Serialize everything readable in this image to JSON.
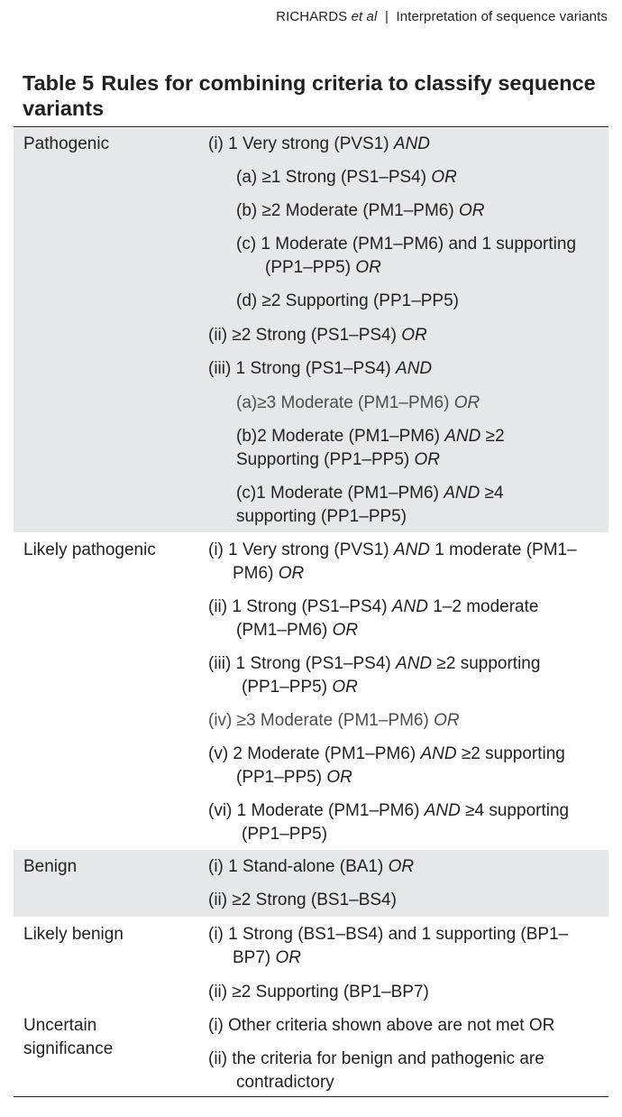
{
  "header": {
    "author": "RICHARDS",
    "etal": "et al",
    "separator": "|",
    "section": "Interpretation of sequence variants"
  },
  "table": {
    "label": "Table 5",
    "title_line1": "Rules for combining criteria to classify sequence",
    "title_line2": "variants",
    "rows": {
      "pathogenic": {
        "category": "Pathogenic",
        "r1": "(i) 1 Very strong (PVS1) ",
        "r1b": "AND",
        "r2": "(a) ≥1 Strong (PS1–PS4) ",
        "r2b": "OR",
        "r3": "(b) ≥2 Moderate (PM1–PM6) ",
        "r3b": "OR",
        "r4": "(c) 1 Moderate (PM1–PM6) and 1 supporting",
        "r4c": "(PP1–PP5) ",
        "r4cb": "OR",
        "r5": "(d) ≥2 Supporting (PP1–PP5)",
        "r6": "(ii) ≥2 Strong (PS1–PS4) ",
        "r6b": "OR",
        "r7": "(iii) 1 Strong (PS1–PS4) ",
        "r7b": "AND",
        "r8": "(a)≥3 Moderate (PM1–PM6) ",
        "r8b": "OR",
        "r9": "(b)2 Moderate (PM1–PM6) ",
        "r9b": "AND",
        "r9c": " ≥2",
        "r9d": "Supporting (PP1–PP5) ",
        "r9db": "OR",
        "r10": "(c)1 Moderate (PM1–PM6) ",
        "r10b": "AND",
        "r10c": " ≥4",
        "r10d": "supporting (PP1–PP5)"
      },
      "likely_pathogenic": {
        "category": "Likely pathogenic",
        "r1": "(i) 1 Very strong (PVS1) ",
        "r1b": "AND",
        "r1c": " 1 moderate (PM1–",
        "r1d": "PM6) ",
        "r1db": "OR",
        "r2": "(ii) 1 Strong (PS1–PS4) ",
        "r2b": "AND",
        "r2c": " 1–2 moderate",
        "r2d": "(PM1–PM6) ",
        "r2db": "OR",
        "r3": "(iii) 1 Strong (PS1–PS4) ",
        "r3b": "AND",
        "r3c": " ≥2 supporting",
        "r3d": "(PP1–PP5) ",
        "r3db": "OR",
        "r4": "(iv) ≥3 Moderate (PM1–PM6) ",
        "r4b": "OR",
        "r5": "(v) 2 Moderate (PM1–PM6) ",
        "r5b": "AND",
        "r5c": " ≥2 supporting",
        "r5d": "(PP1–PP5) ",
        "r5db": "OR",
        "r6": "(vi) 1 Moderate (PM1–PM6) ",
        "r6b": "AND",
        "r6c": " ≥4 supporting",
        "r6d": "(PP1–PP5)"
      },
      "benign": {
        "category": "Benign",
        "r1": "(i) 1 Stand-alone (BA1) ",
        "r1b": "OR",
        "r2": "(ii) ≥2 Strong (BS1–BS4)"
      },
      "likely_benign": {
        "category": "Likely benign",
        "r1": "(i) 1 Strong (BS1–BS4) and 1 supporting (BP1–",
        "r1d": "BP7) ",
        "r1db": "OR",
        "r2": "(ii) ≥2 Supporting (BP1–BP7)"
      },
      "uncertain": {
        "category_line1": "Uncertain",
        "category_line2": "significance",
        "r1": "(i) Other criteria shown above are not met OR",
        "r2": "(ii) the criteria for benign and pathogenic are",
        "r2d": "contradictory"
      }
    }
  }
}
